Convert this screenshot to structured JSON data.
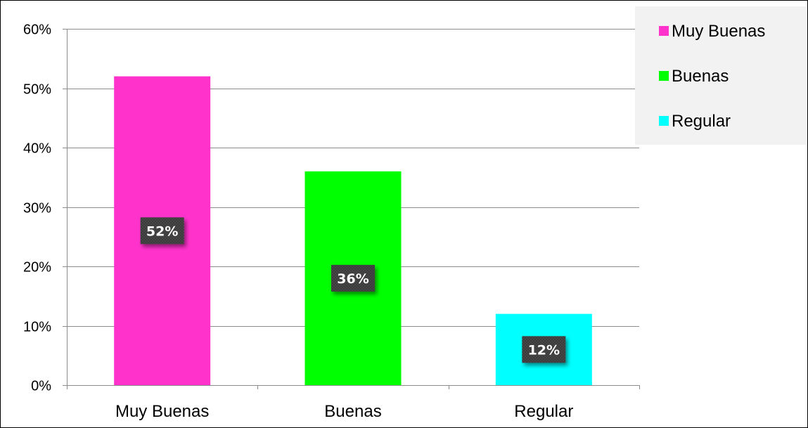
{
  "chart_data": {
    "type": "bar",
    "title": "",
    "xlabel": "",
    "ylabel": "",
    "categories": [
      "Muy Buenas",
      "Buenas",
      "Regular"
    ],
    "values": [
      52,
      36,
      12
    ],
    "data_labels": [
      "52%",
      "36%",
      "12%"
    ],
    "ylim": [
      0,
      60
    ],
    "yticks": [
      0,
      10,
      20,
      30,
      40,
      50,
      60
    ],
    "ytick_labels": [
      "0%",
      "10%",
      "20%",
      "30%",
      "40%",
      "50%",
      "60%"
    ],
    "grid": true,
    "legend": {
      "placement": "top-right",
      "entries": [
        "Muy Buenas",
        "Buenas",
        "Regular"
      ]
    },
    "colors": [
      "#ff33cc",
      "#00ff00",
      "#00ffff"
    ],
    "data_label_background": "#3a3a3a",
    "legend_background": "#f2f2f2"
  }
}
